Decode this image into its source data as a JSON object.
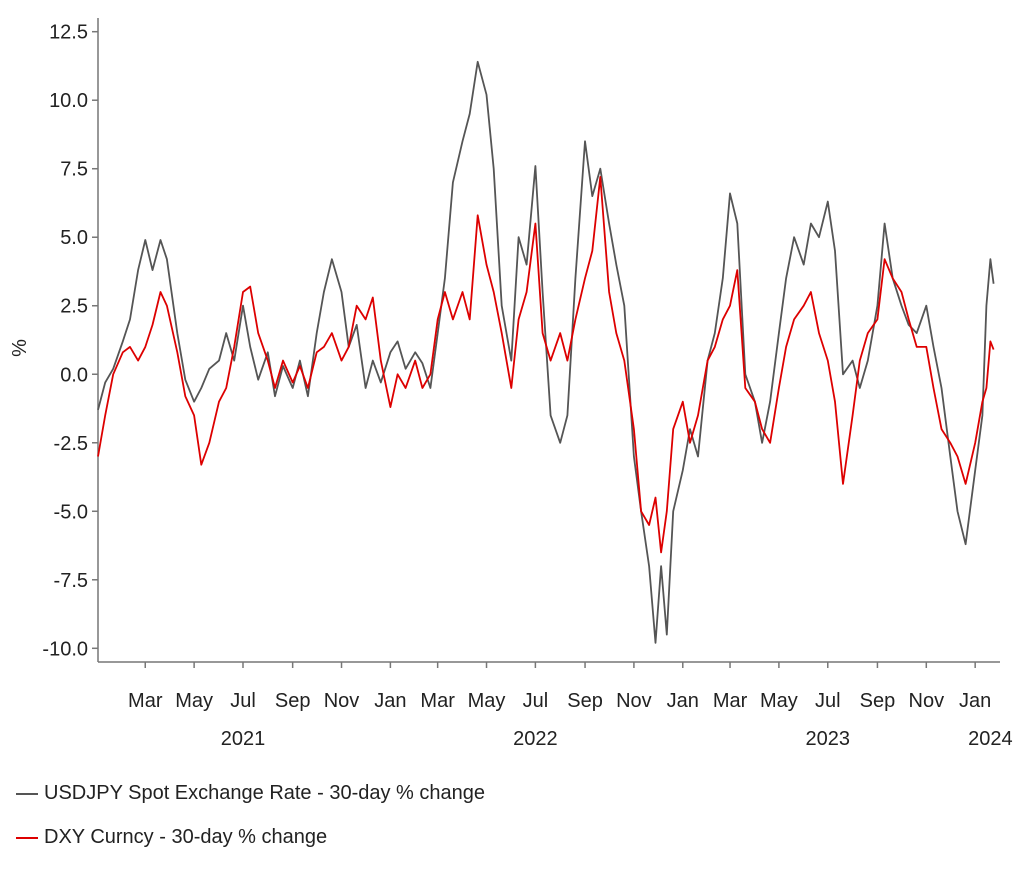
{
  "chart_data": {
    "type": "line",
    "title": "",
    "xlabel": "",
    "ylabel": "%",
    "ylim": [
      -10.5,
      13
    ],
    "yticks": [
      12.5,
      10.0,
      7.5,
      5.0,
      2.5,
      0.0,
      -2.5,
      -5.0,
      -7.5,
      -10.0
    ],
    "ytick_labels": [
      "12.5",
      "10.0",
      "7.5",
      "5.0",
      "2.5",
      "0.0",
      "-2.5",
      "-5.0",
      "-7.5",
      "-10.0"
    ],
    "xlim": [
      "2021-01-01",
      "2024-02-01"
    ],
    "month_ticks": [
      "2021-03-01",
      "2021-05-01",
      "2021-07-01",
      "2021-09-01",
      "2021-11-01",
      "2022-01-01",
      "2022-03-01",
      "2022-05-01",
      "2022-07-01",
      "2022-09-01",
      "2022-11-01",
      "2023-01-01",
      "2023-03-01",
      "2023-05-01",
      "2023-07-01",
      "2023-09-01",
      "2023-11-01",
      "2024-01-01"
    ],
    "month_labels": [
      "Mar",
      "May",
      "Jul",
      "Sep",
      "Nov",
      "Jan",
      "Mar",
      "May",
      "Jul",
      "Sep",
      "Nov",
      "Jan",
      "Mar",
      "May",
      "Jul",
      "Sep",
      "Nov",
      "Jan"
    ],
    "year_labels": [
      {
        "label": "2021",
        "date": "2021-07-01"
      },
      {
        "label": "2022",
        "date": "2022-07-01"
      },
      {
        "label": "2023",
        "date": "2023-07-01"
      },
      {
        "label": "2024",
        "date": "2024-01-20"
      }
    ],
    "grid": false,
    "legend": "bottom-left",
    "series": [
      {
        "name": "USDJPY Spot Exchange Rate - 30-day % change",
        "color": "#555555",
        "points": [
          [
            "2021-01-01",
            -1.3
          ],
          [
            "2021-01-10",
            -0.3
          ],
          [
            "2021-01-20",
            0.2
          ],
          [
            "2021-02-01",
            1.2
          ],
          [
            "2021-02-10",
            2.0
          ],
          [
            "2021-02-20",
            3.8
          ],
          [
            "2021-03-01",
            4.9
          ],
          [
            "2021-03-10",
            3.8
          ],
          [
            "2021-03-20",
            4.9
          ],
          [
            "2021-03-28",
            4.2
          ],
          [
            "2021-04-10",
            1.5
          ],
          [
            "2021-04-20",
            -0.2
          ],
          [
            "2021-05-01",
            -1.0
          ],
          [
            "2021-05-10",
            -0.5
          ],
          [
            "2021-05-20",
            0.2
          ],
          [
            "2021-06-01",
            0.5
          ],
          [
            "2021-06-10",
            1.5
          ],
          [
            "2021-06-20",
            0.5
          ],
          [
            "2021-07-01",
            2.5
          ],
          [
            "2021-07-10",
            1.0
          ],
          [
            "2021-07-20",
            -0.2
          ],
          [
            "2021-08-01",
            0.8
          ],
          [
            "2021-08-10",
            -0.8
          ],
          [
            "2021-08-20",
            0.3
          ],
          [
            "2021-09-01",
            -0.5
          ],
          [
            "2021-09-10",
            0.5
          ],
          [
            "2021-09-20",
            -0.8
          ],
          [
            "2021-10-01",
            1.5
          ],
          [
            "2021-10-10",
            3.0
          ],
          [
            "2021-10-20",
            4.2
          ],
          [
            "2021-11-01",
            3.0
          ],
          [
            "2021-11-10",
            1.0
          ],
          [
            "2021-11-20",
            1.8
          ],
          [
            "2021-12-01",
            -0.5
          ],
          [
            "2021-12-10",
            0.5
          ],
          [
            "2021-12-20",
            -0.3
          ],
          [
            "2022-01-01",
            0.8
          ],
          [
            "2022-01-10",
            1.2
          ],
          [
            "2022-01-20",
            0.2
          ],
          [
            "2022-02-01",
            0.8
          ],
          [
            "2022-02-10",
            0.4
          ],
          [
            "2022-02-20",
            -0.5
          ],
          [
            "2022-03-01",
            1.5
          ],
          [
            "2022-03-10",
            3.5
          ],
          [
            "2022-03-20",
            7.0
          ],
          [
            "2022-04-01",
            8.5
          ],
          [
            "2022-04-10",
            9.5
          ],
          [
            "2022-04-20",
            11.4
          ],
          [
            "2022-05-01",
            10.2
          ],
          [
            "2022-05-10",
            7.5
          ],
          [
            "2022-05-20",
            2.5
          ],
          [
            "2022-06-01",
            0.5
          ],
          [
            "2022-06-10",
            5.0
          ],
          [
            "2022-06-20",
            4.0
          ],
          [
            "2022-07-01",
            7.6
          ],
          [
            "2022-07-10",
            3.0
          ],
          [
            "2022-07-20",
            -1.5
          ],
          [
            "2022-08-01",
            -2.5
          ],
          [
            "2022-08-10",
            -1.5
          ],
          [
            "2022-08-20",
            3.5
          ],
          [
            "2022-09-01",
            8.5
          ],
          [
            "2022-09-10",
            6.5
          ],
          [
            "2022-09-20",
            7.5
          ],
          [
            "2022-10-01",
            5.5
          ],
          [
            "2022-10-10",
            4.0
          ],
          [
            "2022-10-20",
            2.5
          ],
          [
            "2022-11-01",
            -3.0
          ],
          [
            "2022-11-10",
            -5.0
          ],
          [
            "2022-11-20",
            -7.0
          ],
          [
            "2022-11-28",
            -9.8
          ],
          [
            "2022-12-05",
            -7.0
          ],
          [
            "2022-12-12",
            -9.5
          ],
          [
            "2022-12-20",
            -5.0
          ],
          [
            "2023-01-01",
            -3.5
          ],
          [
            "2023-01-10",
            -2.0
          ],
          [
            "2023-01-20",
            -3.0
          ],
          [
            "2023-02-01",
            0.5
          ],
          [
            "2023-02-10",
            1.5
          ],
          [
            "2023-02-20",
            3.5
          ],
          [
            "2023-03-01",
            6.6
          ],
          [
            "2023-03-10",
            5.5
          ],
          [
            "2023-03-20",
            0.0
          ],
          [
            "2023-04-01",
            -1.0
          ],
          [
            "2023-04-10",
            -2.5
          ],
          [
            "2023-04-20",
            -1.0
          ],
          [
            "2023-05-01",
            1.5
          ],
          [
            "2023-05-10",
            3.5
          ],
          [
            "2023-05-20",
            5.0
          ],
          [
            "2023-06-01",
            4.0
          ],
          [
            "2023-06-10",
            5.5
          ],
          [
            "2023-06-20",
            5.0
          ],
          [
            "2023-07-01",
            6.3
          ],
          [
            "2023-07-10",
            4.5
          ],
          [
            "2023-07-20",
            0.0
          ],
          [
            "2023-08-01",
            0.5
          ],
          [
            "2023-08-10",
            -0.5
          ],
          [
            "2023-08-20",
            0.5
          ],
          [
            "2023-09-01",
            2.5
          ],
          [
            "2023-09-10",
            5.5
          ],
          [
            "2023-09-20",
            3.5
          ],
          [
            "2023-10-01",
            2.5
          ],
          [
            "2023-10-10",
            1.8
          ],
          [
            "2023-10-20",
            1.5
          ],
          [
            "2023-11-01",
            2.5
          ],
          [
            "2023-11-10",
            1.0
          ],
          [
            "2023-11-20",
            -0.5
          ],
          [
            "2023-12-01",
            -3.0
          ],
          [
            "2023-12-10",
            -5.0
          ],
          [
            "2023-12-20",
            -6.2
          ],
          [
            "2024-01-01",
            -3.5
          ],
          [
            "2024-01-10",
            -1.5
          ],
          [
            "2024-01-15",
            2.5
          ],
          [
            "2024-01-20",
            4.2
          ],
          [
            "2024-01-24",
            3.3
          ]
        ]
      },
      {
        "name": "DXY Curncy - 30-day % change",
        "color": "#dd0000",
        "points": [
          [
            "2021-01-01",
            -3.0
          ],
          [
            "2021-01-10",
            -1.5
          ],
          [
            "2021-01-20",
            0.0
          ],
          [
            "2021-02-01",
            0.8
          ],
          [
            "2021-02-10",
            1.0
          ],
          [
            "2021-02-20",
            0.5
          ],
          [
            "2021-03-01",
            1.0
          ],
          [
            "2021-03-10",
            1.8
          ],
          [
            "2021-03-20",
            3.0
          ],
          [
            "2021-03-28",
            2.5
          ],
          [
            "2021-04-10",
            0.8
          ],
          [
            "2021-04-20",
            -0.8
          ],
          [
            "2021-05-01",
            -1.5
          ],
          [
            "2021-05-10",
            -3.3
          ],
          [
            "2021-05-20",
            -2.5
          ],
          [
            "2021-06-01",
            -1.0
          ],
          [
            "2021-06-10",
            -0.5
          ],
          [
            "2021-06-20",
            1.0
          ],
          [
            "2021-07-01",
            3.0
          ],
          [
            "2021-07-10",
            3.2
          ],
          [
            "2021-07-20",
            1.5
          ],
          [
            "2021-08-01",
            0.5
          ],
          [
            "2021-08-10",
            -0.5
          ],
          [
            "2021-08-20",
            0.5
          ],
          [
            "2021-09-01",
            -0.3
          ],
          [
            "2021-09-10",
            0.3
          ],
          [
            "2021-09-20",
            -0.5
          ],
          [
            "2021-10-01",
            0.8
          ],
          [
            "2021-10-10",
            1.0
          ],
          [
            "2021-10-20",
            1.5
          ],
          [
            "2021-11-01",
            0.5
          ],
          [
            "2021-11-10",
            1.0
          ],
          [
            "2021-11-20",
            2.5
          ],
          [
            "2021-12-01",
            2.0
          ],
          [
            "2021-12-10",
            2.8
          ],
          [
            "2021-12-20",
            0.5
          ],
          [
            "2022-01-01",
            -1.2
          ],
          [
            "2022-01-10",
            0.0
          ],
          [
            "2022-01-20",
            -0.5
          ],
          [
            "2022-02-01",
            0.5
          ],
          [
            "2022-02-10",
            -0.5
          ],
          [
            "2022-02-20",
            0.0
          ],
          [
            "2022-03-01",
            2.0
          ],
          [
            "2022-03-10",
            3.0
          ],
          [
            "2022-03-20",
            2.0
          ],
          [
            "2022-04-01",
            3.0
          ],
          [
            "2022-04-10",
            2.0
          ],
          [
            "2022-04-20",
            5.8
          ],
          [
            "2022-05-01",
            4.0
          ],
          [
            "2022-05-10",
            3.0
          ],
          [
            "2022-05-20",
            1.5
          ],
          [
            "2022-06-01",
            -0.5
          ],
          [
            "2022-06-10",
            2.0
          ],
          [
            "2022-06-20",
            3.0
          ],
          [
            "2022-07-01",
            5.5
          ],
          [
            "2022-07-10",
            1.5
          ],
          [
            "2022-07-20",
            0.5
          ],
          [
            "2022-08-01",
            1.5
          ],
          [
            "2022-08-10",
            0.5
          ],
          [
            "2022-08-20",
            2.0
          ],
          [
            "2022-09-01",
            3.5
          ],
          [
            "2022-09-10",
            4.5
          ],
          [
            "2022-09-20",
            7.2
          ],
          [
            "2022-10-01",
            3.0
          ],
          [
            "2022-10-10",
            1.5
          ],
          [
            "2022-10-20",
            0.5
          ],
          [
            "2022-11-01",
            -2.0
          ],
          [
            "2022-11-10",
            -5.0
          ],
          [
            "2022-11-20",
            -5.5
          ],
          [
            "2022-11-28",
            -4.5
          ],
          [
            "2022-12-05",
            -6.5
          ],
          [
            "2022-12-12",
            -5.0
          ],
          [
            "2022-12-20",
            -2.0
          ],
          [
            "2023-01-01",
            -1.0
          ],
          [
            "2023-01-10",
            -2.5
          ],
          [
            "2023-01-20",
            -1.5
          ],
          [
            "2023-02-01",
            0.5
          ],
          [
            "2023-02-10",
            1.0
          ],
          [
            "2023-02-20",
            2.0
          ],
          [
            "2023-03-01",
            2.5
          ],
          [
            "2023-03-10",
            3.8
          ],
          [
            "2023-03-20",
            -0.5
          ],
          [
            "2023-04-01",
            -1.0
          ],
          [
            "2023-04-10",
            -2.0
          ],
          [
            "2023-04-20",
            -2.5
          ],
          [
            "2023-05-01",
            -0.5
          ],
          [
            "2023-05-10",
            1.0
          ],
          [
            "2023-05-20",
            2.0
          ],
          [
            "2023-06-01",
            2.5
          ],
          [
            "2023-06-10",
            3.0
          ],
          [
            "2023-06-20",
            1.5
          ],
          [
            "2023-07-01",
            0.5
          ],
          [
            "2023-07-10",
            -1.0
          ],
          [
            "2023-07-20",
            -4.0
          ],
          [
            "2023-08-01",
            -1.5
          ],
          [
            "2023-08-10",
            0.5
          ],
          [
            "2023-08-20",
            1.5
          ],
          [
            "2023-09-01",
            2.0
          ],
          [
            "2023-09-10",
            4.2
          ],
          [
            "2023-09-20",
            3.5
          ],
          [
            "2023-10-01",
            3.0
          ],
          [
            "2023-10-10",
            2.0
          ],
          [
            "2023-10-20",
            1.0
          ],
          [
            "2023-11-01",
            1.0
          ],
          [
            "2023-11-10",
            -0.5
          ],
          [
            "2023-11-20",
            -2.0
          ],
          [
            "2023-12-01",
            -2.5
          ],
          [
            "2023-12-10",
            -3.0
          ],
          [
            "2023-12-20",
            -4.0
          ],
          [
            "2024-01-01",
            -2.5
          ],
          [
            "2024-01-10",
            -1.0
          ],
          [
            "2024-01-15",
            -0.5
          ],
          [
            "2024-01-20",
            1.2
          ],
          [
            "2024-01-24",
            0.9
          ]
        ]
      }
    ]
  }
}
